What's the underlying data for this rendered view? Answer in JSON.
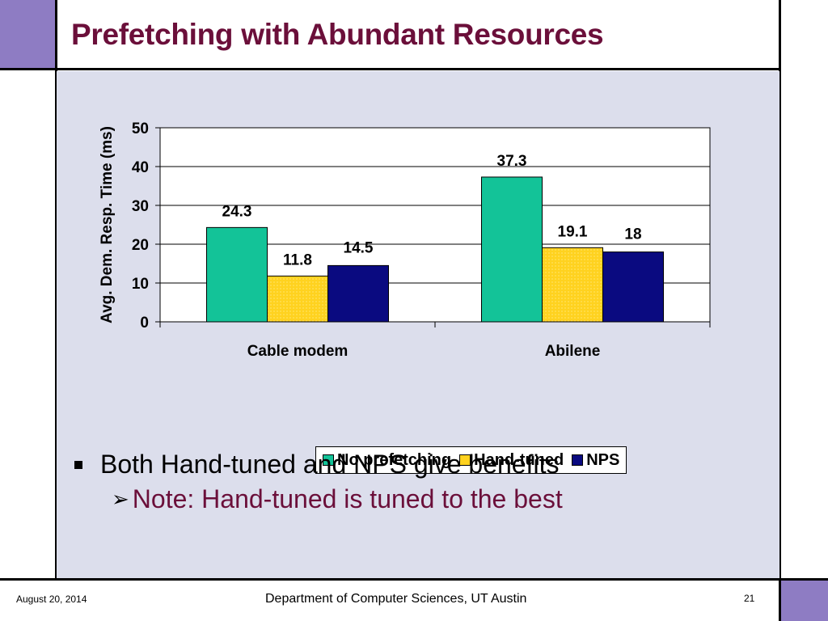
{
  "slide": {
    "title": "Prefetching with Abundant Resources",
    "bullets": [
      {
        "text": "Both Hand-tuned and NPS give benefits"
      },
      {
        "text": "Note: Hand-tuned is tuned to the best"
      }
    ],
    "footer": {
      "date": "August 20, 2014",
      "center": "Department of Computer Sciences, UT Austin",
      "page": "21"
    },
    "colors": {
      "accent": "#8e7cc3",
      "title": "#6b0f3a",
      "panel": "#dcdeec"
    }
  },
  "chart_data": {
    "type": "bar",
    "categories": [
      "Cable modem",
      "Abilene"
    ],
    "series": [
      {
        "name": "No prefetching",
        "values": [
          24.3,
          37.3
        ],
        "color": "#13c398"
      },
      {
        "name": "Hand-tuned",
        "values": [
          11.8,
          19.1
        ],
        "color": "#ffd21f"
      },
      {
        "name": "NPS",
        "values": [
          14.5,
          18
        ],
        "color": "#0a0a80"
      }
    ],
    "data_labels": [
      [
        "24.3",
        "37.3"
      ],
      [
        "11.8",
        "19.1"
      ],
      [
        "14.5",
        "18"
      ]
    ],
    "ylabel": "Avg. Dem. Resp. Time (ms)",
    "ylim": [
      0,
      50
    ],
    "yticks": [
      "0",
      "10",
      "20",
      "30",
      "40",
      "50"
    ],
    "grid": true,
    "legend_position": "bottom"
  }
}
